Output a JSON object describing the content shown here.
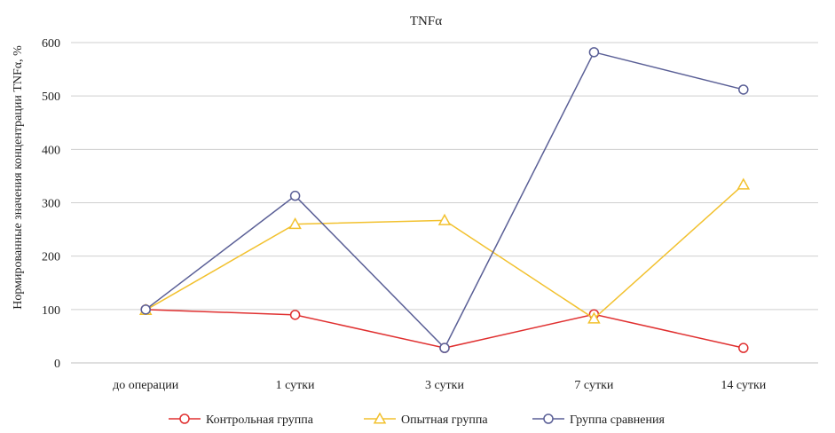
{
  "chart_data": {
    "type": "line",
    "title": "TNFα",
    "xlabel": "",
    "ylabel": "Нормированные значения концентрации TNFα, %",
    "categories": [
      "до операции",
      "1 сутки",
      "3 сутки",
      "7 сутки",
      "14 сутки"
    ],
    "ylim": [
      0,
      600
    ],
    "yticks": [
      0,
      100,
      200,
      300,
      400,
      500,
      600
    ],
    "grid": true,
    "legend_position": "bottom",
    "series": [
      {
        "name": "Контрольная группа",
        "values": [
          100,
          90,
          28,
          91,
          28
        ],
        "color": "#e03030",
        "marker": "circle"
      },
      {
        "name": "Опытная группа",
        "values": [
          99,
          260,
          267,
          83,
          334
        ],
        "color": "#f2c12e",
        "marker": "triangle"
      },
      {
        "name": "Группа сравнения",
        "values": [
          100,
          313,
          28,
          582,
          512
        ],
        "color": "#5a5f96",
        "marker": "circle"
      }
    ]
  }
}
